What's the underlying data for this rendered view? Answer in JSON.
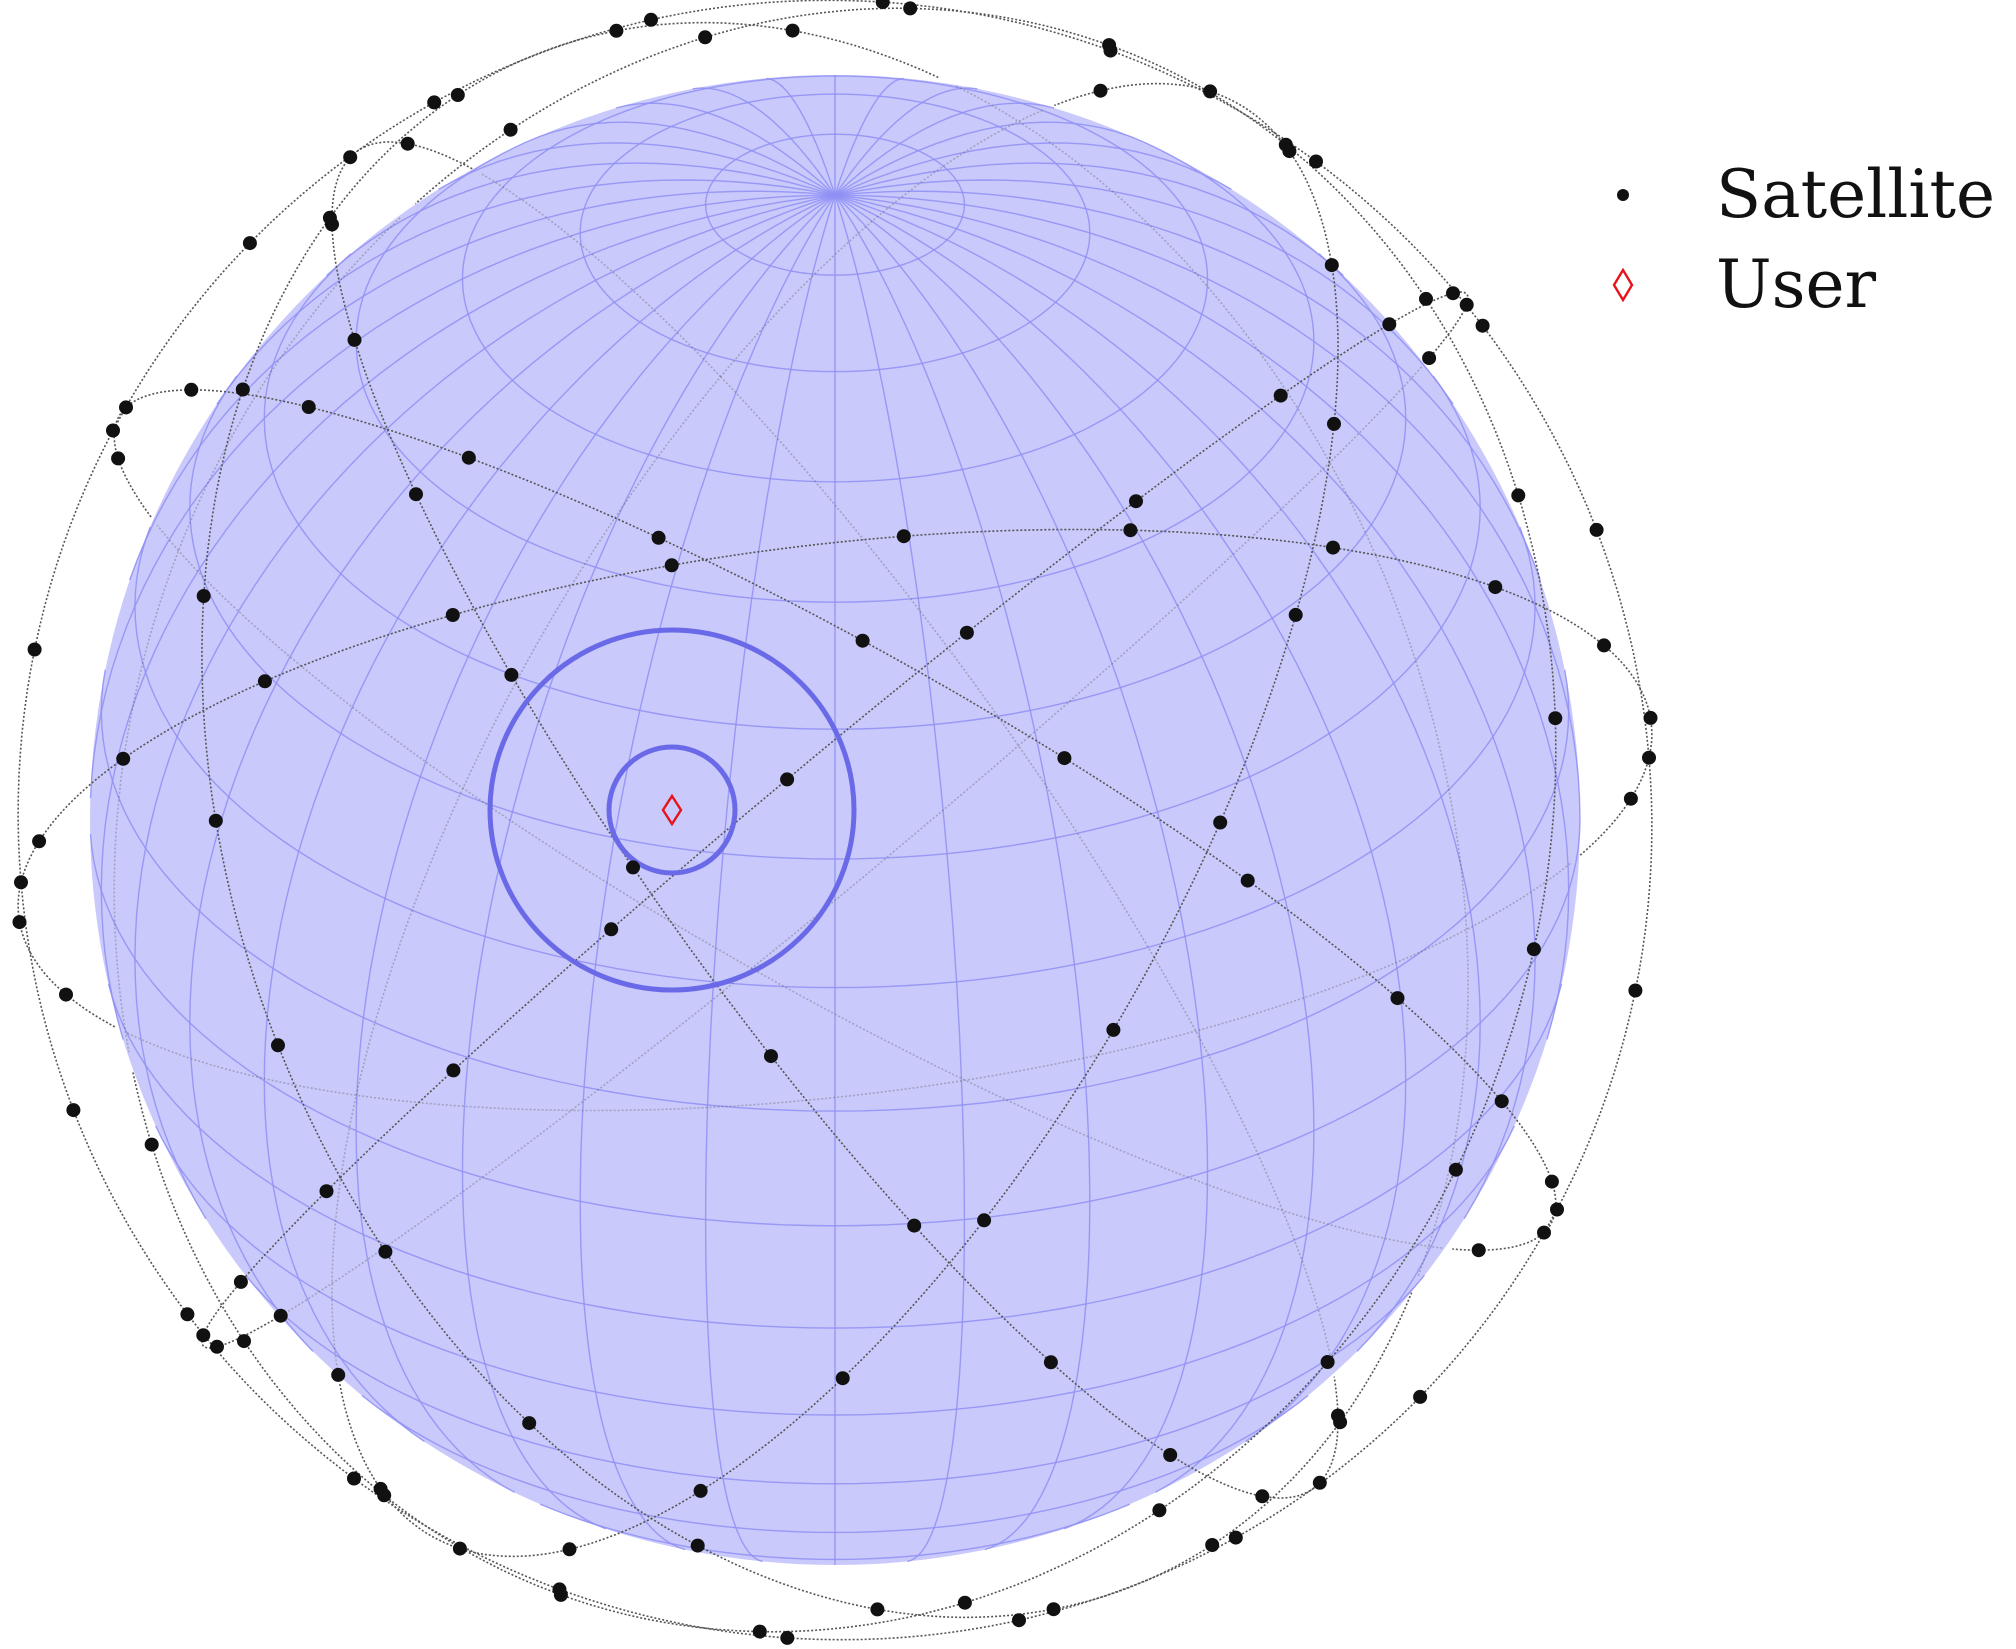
{
  "legend": {
    "items": [
      {
        "label": "Satellite",
        "marker": "filled-circle",
        "color": "#111111"
      },
      {
        "label": "User",
        "marker": "diamond-outline",
        "color": "#e8121a"
      }
    ]
  },
  "colors": {
    "earth_fill": "#c9c9fb",
    "earth_grid": "#8f8ff5",
    "coverage_ring": "#6a6ae8",
    "orbit_line": "#555555",
    "satellite": "#111111",
    "user": "#e8121a"
  },
  "icons": {
    "satellite": "filled-circle",
    "user": "diamond-outline"
  }
}
